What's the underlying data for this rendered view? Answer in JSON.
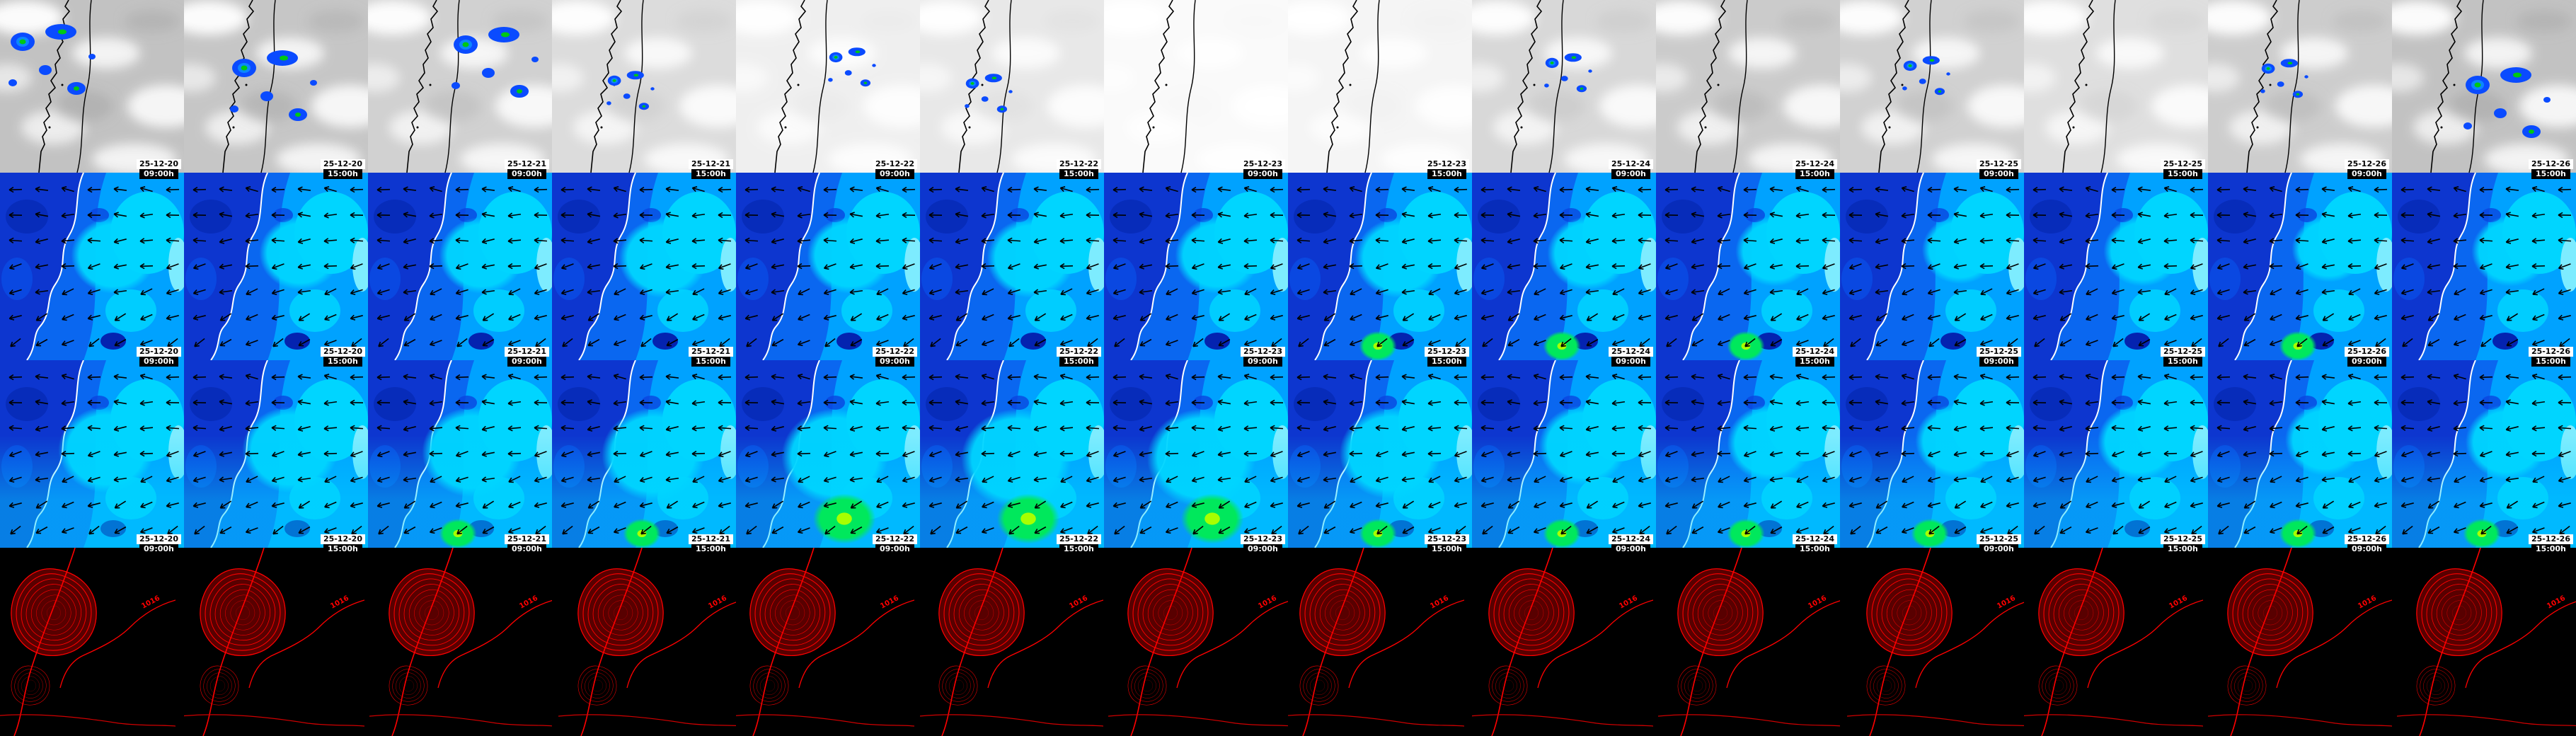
{
  "page": {
    "description": "Composite weather-model forecast montage: 4 map rows x 14 forecast time columns",
    "background": "#000000"
  },
  "grid": {
    "columns": 14,
    "rows": 4
  },
  "row_meta": [
    {
      "id": "satellite",
      "label": "Satellite cloud / precipitation panels",
      "timestamps": true
    },
    {
      "id": "wind-field-upper",
      "label": "Wind / sea field panels (upper row)",
      "timestamps": true
    },
    {
      "id": "wind-field-lower",
      "label": "Wind / sea field panels (lower row)",
      "timestamps": true
    },
    {
      "id": "pressure-contours",
      "label": "Pressure / terrain contour panels",
      "timestamps": false
    }
  ],
  "annotations": {
    "isobar_label": "1016"
  },
  "columns": [
    {
      "date": "25-12-20",
      "time": "09:00h",
      "sat": {
        "white": 0.15,
        "precip": 2
      },
      "wind1": {
        "cyan": 0.55,
        "green": 0
      },
      "wind2": {
        "cyan": 0.7,
        "green": 0
      }
    },
    {
      "date": "25-12-20",
      "time": "15:00h",
      "sat": {
        "white": 0.2,
        "precip": 2
      },
      "wind1": {
        "cyan": 0.5,
        "green": 0
      },
      "wind2": {
        "cyan": 0.7,
        "green": 0
      }
    },
    {
      "date": "25-12-21",
      "time": "09:00h",
      "sat": {
        "white": 0.35,
        "precip": 2
      },
      "wind1": {
        "cyan": 0.55,
        "green": 0
      },
      "wind2": {
        "cyan": 0.75,
        "green": 1
      }
    },
    {
      "date": "25-12-21",
      "time": "15:00h",
      "sat": {
        "white": 0.5,
        "precip": 1
      },
      "wind1": {
        "cyan": 0.6,
        "green": 0
      },
      "wind2": {
        "cyan": 0.8,
        "green": 1
      }
    },
    {
      "date": "25-12-22",
      "time": "09:00h",
      "sat": {
        "white": 0.78,
        "precip": 1
      },
      "wind1": {
        "cyan": 0.55,
        "green": 0
      },
      "wind2": {
        "cyan": 0.85,
        "green": 2
      }
    },
    {
      "date": "25-12-22",
      "time": "15:00h",
      "sat": {
        "white": 0.68,
        "precip": 1
      },
      "wind1": {
        "cyan": 0.6,
        "green": 0
      },
      "wind2": {
        "cyan": 0.9,
        "green": 2
      }
    },
    {
      "date": "25-12-23",
      "time": "09:00h",
      "sat": {
        "white": 0.92,
        "precip": 0
      },
      "wind1": {
        "cyan": 0.55,
        "green": 0
      },
      "wind2": {
        "cyan": 0.88,
        "green": 2
      }
    },
    {
      "date": "25-12-23",
      "time": "15:00h",
      "sat": {
        "white": 0.85,
        "precip": 0
      },
      "wind1": {
        "cyan": 0.6,
        "green": 1
      },
      "wind2": {
        "cyan": 0.78,
        "green": 1
      }
    },
    {
      "date": "25-12-24",
      "time": "09:00h",
      "sat": {
        "white": 0.45,
        "precip": 1
      },
      "wind1": {
        "cyan": 0.5,
        "green": 1
      },
      "wind2": {
        "cyan": 0.6,
        "green": 1
      }
    },
    {
      "date": "25-12-24",
      "time": "15:00h",
      "sat": {
        "white": 0.28,
        "precip": 0
      },
      "wind1": {
        "cyan": 0.45,
        "green": 1
      },
      "wind2": {
        "cyan": 0.55,
        "green": 1
      }
    },
    {
      "date": "25-12-25",
      "time": "09:00h",
      "sat": {
        "white": 0.35,
        "precip": 1
      },
      "wind1": {
        "cyan": 0.42,
        "green": 0
      },
      "wind2": {
        "cyan": 0.5,
        "green": 1
      }
    },
    {
      "date": "25-12-25",
      "time": "15:00h",
      "sat": {
        "white": 0.55,
        "precip": 0
      },
      "wind1": {
        "cyan": 0.45,
        "green": 0
      },
      "wind2": {
        "cyan": 0.52,
        "green": 0
      }
    },
    {
      "date": "25-12-26",
      "time": "09:00h",
      "sat": {
        "white": 0.3,
        "precip": 1
      },
      "wind1": {
        "cyan": 0.4,
        "green": 1
      },
      "wind2": {
        "cyan": 0.48,
        "green": 1
      }
    },
    {
      "date": "25-12-26",
      "time": "15:00h",
      "sat": {
        "white": 0.15,
        "precip": 2
      },
      "wind1": {
        "cyan": 0.45,
        "green": 0
      },
      "wind2": {
        "cyan": 0.52,
        "green": 1
      }
    }
  ],
  "colors": {
    "sat_base": "#b8b8b8",
    "sat_cloud": "#ffffff",
    "precip_blue": "#0a4bff",
    "precip_mid": "#0c86ff",
    "precip_core": "#00c814",
    "sea_dark": "#0d36cf",
    "sea_base": "#0a67f0",
    "sea_light": "#00a2ff",
    "sea_cyan": "#00d5ff",
    "sea_pale": "#7decff",
    "wave_green": "#00e85c",
    "wave_lime": "#a8ff00",
    "coast_row1": "#000000",
    "coast_row23": "#ffffff",
    "pressure_red": "#ff0000",
    "pressure_bg": "#000000"
  }
}
